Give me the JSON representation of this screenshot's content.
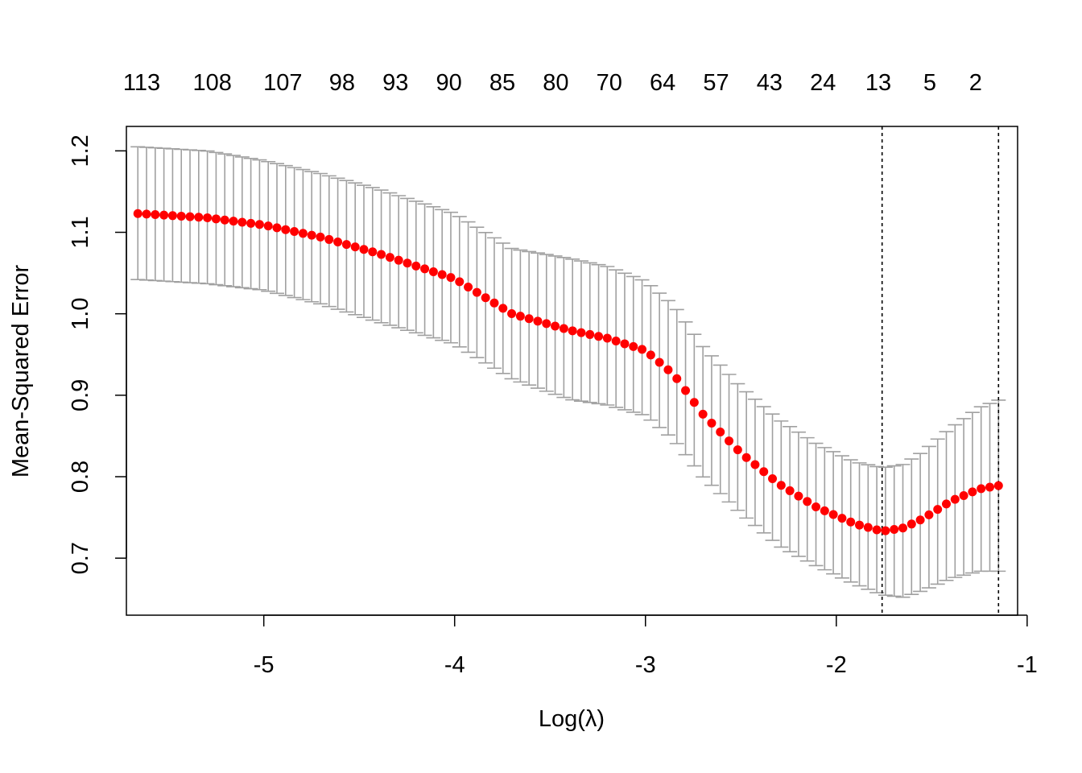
{
  "chart_data": {
    "type": "scatter",
    "xlabel": "Log(λ)",
    "ylabel": "Mean-Squared Error",
    "xlim": [
      -5.72,
      -1.05
    ],
    "ylim": [
      0.63,
      1.23
    ],
    "xticks": [
      -5,
      -4,
      -3,
      -2,
      -1
    ],
    "yticks": [
      0.7,
      0.8,
      0.9,
      1.0,
      1.1,
      1.2
    ],
    "ytick_labels": [
      "0.7",
      "0.8",
      "0.9",
      "1.0",
      "1.1",
      "1.2"
    ],
    "top_axis": {
      "x": [
        -5.64,
        -5.27,
        -4.9,
        -4.59,
        -4.31,
        -4.03,
        -3.75,
        -3.47,
        -3.19,
        -2.91,
        -2.63,
        -2.35,
        -2.07,
        -1.78,
        -1.51,
        -1.27
      ],
      "labels": [
        "113",
        "108",
        "107",
        "98",
        "93",
        "90",
        "85",
        "80",
        "70",
        "64",
        "57",
        "43",
        "24",
        "13",
        "5",
        "2"
      ]
    },
    "vlines": [
      -1.76,
      -1.15
    ],
    "colors": {
      "point": "#ff0000",
      "errorbar": "#a0a0a0",
      "vline": "#000000"
    },
    "curve_points": [
      [
        -5.66,
        1.123,
        1.205,
        1.042
      ],
      [
        -5.3,
        1.118,
        1.2,
        1.037
      ],
      [
        -5.0,
        1.109,
        1.188,
        1.029
      ],
      [
        -4.7,
        1.094,
        1.172,
        1.012
      ],
      [
        -4.4,
        1.074,
        1.153,
        0.99
      ],
      [
        -4.0,
        1.043,
        1.123,
        0.963
      ],
      [
        -3.7,
        1.0,
        1.08,
        0.92
      ],
      [
        -3.4,
        0.98,
        1.068,
        0.895
      ],
      [
        -3.2,
        0.97,
        1.058,
        0.888
      ],
      [
        -3.0,
        0.955,
        1.04,
        0.875
      ],
      [
        -2.85,
        0.925,
        1.01,
        0.845
      ],
      [
        -2.7,
        0.877,
        0.96,
        0.8
      ],
      [
        -2.5,
        0.829,
        0.91,
        0.755
      ],
      [
        -2.3,
        0.791,
        0.87,
        0.715
      ],
      [
        -2.1,
        0.762,
        0.84,
        0.69
      ],
      [
        -1.9,
        0.742,
        0.818,
        0.668
      ],
      [
        -1.76,
        0.733,
        0.811,
        0.655
      ],
      [
        -1.65,
        0.737,
        0.815,
        0.652
      ],
      [
        -1.55,
        0.748,
        0.83,
        0.66
      ],
      [
        -1.4,
        0.77,
        0.86,
        0.675
      ],
      [
        -1.25,
        0.785,
        0.885,
        0.684
      ],
      [
        -1.15,
        0.789,
        0.894,
        0.684
      ]
    ]
  }
}
